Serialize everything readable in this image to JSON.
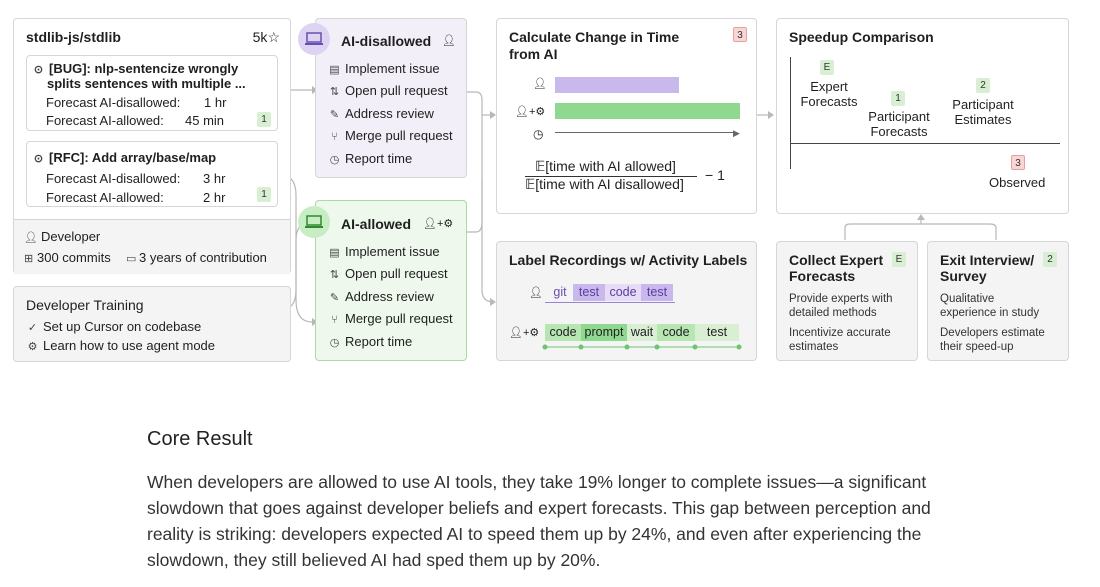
{
  "repo": {
    "name": "stdlib-js/stdlib",
    "stars": "5k",
    "issue1": {
      "title": "[BUG]: nlp-sentencize wrongly splits sentences with multiple ...",
      "line1": "[BUG]: nlp-sentencize wrongly",
      "line2": "splits sentences with multiple ...",
      "dis_label": "Forecast AI-disallowed:",
      "dis_val": "1 hr",
      "all_label": "Forecast AI-allowed:",
      "all_val": "45 min",
      "badge": "1"
    },
    "issue2": {
      "title": "[RFC]: Add array/base/map",
      "dis_label": "Forecast AI-disallowed:",
      "dis_val": "3 hr",
      "all_label": "Forecast AI-allowed:",
      "all_val": "2 hr",
      "badge": "1"
    },
    "developer": "Developer",
    "commits": "300 commits",
    "years": "3 years of contribution"
  },
  "training": {
    "title": "Developer Training",
    "item1": "Set up Cursor on codebase",
    "item2": "Learn how to use agent mode"
  },
  "disallowed": {
    "title": "AI-disallowed",
    "items": [
      "Implement issue",
      "Open pull request",
      "Address review",
      "Merge pull request",
      "Report time"
    ]
  },
  "allowed": {
    "title": "AI-allowed",
    "items": [
      "Implement issue",
      "Open pull request",
      "Address review",
      "Merge pull request",
      "Report time"
    ]
  },
  "calc": {
    "title_line1": "Calculate Change in Time",
    "title_line2": "from AI",
    "badge": "3",
    "numerator": "𝔼[time with AI allowed]",
    "denominator": "𝔼[time with AI disallowed]",
    "minus_one": "−  1"
  },
  "labels": {
    "title": "Label Recordings w/ Activity Labels",
    "row1": [
      "git",
      "test",
      "code",
      "test"
    ],
    "row2": [
      "code",
      "prompt",
      "wait",
      "code",
      "test"
    ]
  },
  "speedup": {
    "title": "Speedup Comparison",
    "expert": {
      "badge": "E",
      "line1": "Expert",
      "line2": "Forecasts"
    },
    "participant_forecasts": {
      "badge": "1",
      "line1": "Participant",
      "line2": "Forecasts"
    },
    "participant_estimates": {
      "badge": "2",
      "line1": "Participant",
      "line2": "Estimates"
    },
    "observed": {
      "badge": "3",
      "label": "Observed"
    }
  },
  "expert_forecasts": {
    "title_line1": "Collect Expert",
    "title_line2": "Forecasts",
    "badge": "E",
    "p1_line1": "Provide experts with",
    "p1_line2": "detailed methods",
    "p2_line1": "Incentivize accurate",
    "p2_line2": "estimates"
  },
  "exit": {
    "title_line1": "Exit Interview/",
    "title_line2": "Survey",
    "badge": "2",
    "p1_line1": "Qualitative",
    "p1_line2": "experience in study",
    "p2_line1": "Developers estimate",
    "p2_line2": "their speed-up"
  },
  "core": {
    "heading": "Core Result",
    "line1": "When developers are allowed to use AI tools, they take 19% longer to complete issues—a significant",
    "line2": "slowdown that goes against developer beliefs and expert forecasts. This gap between perception and",
    "line3": "reality is striking: developers expected AI to speed them up by 24%, and even after experiencing the",
    "line4": "slowdown, they still believed AI had sped them up by 20%."
  },
  "colors": {
    "purple": "#c9b8ec",
    "green": "#8fd88f",
    "purple_bg": "#f2eff8",
    "green_bg": "#eef8ec"
  }
}
